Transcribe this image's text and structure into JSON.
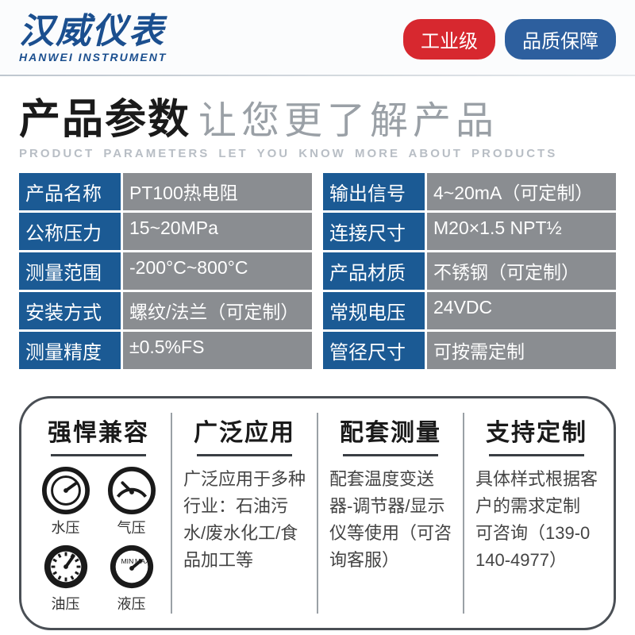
{
  "brand": {
    "cn": "汉威仪表",
    "en": "HANWEI INSTRUMENT"
  },
  "badges": {
    "red": "工业级",
    "blue": "品质保障"
  },
  "title": {
    "bold": "产品参数",
    "light": "让您更了解产品",
    "sub": "PRODUCT PARAMETERS LET YOU KNOW MORE ABOUT PRODUCTS"
  },
  "colors": {
    "label_bg": "#1b5a94",
    "value_bg": "#8a8d91",
    "badge_red": "#d7282f",
    "badge_blue": "#2d5f9e",
    "brand_blue": "#1b4f8f"
  },
  "specs_left": [
    {
      "label": "产品名称",
      "value": "PT100热电阻"
    },
    {
      "label": "公称压力",
      "value": "15~20MPa"
    },
    {
      "label": "测量范围",
      "value": "-200°C~800°C"
    },
    {
      "label": "安装方式",
      "value": "螺纹/法兰（可定制）"
    },
    {
      "label": "测量精度",
      "value": "±0.5%FS"
    }
  ],
  "specs_right": [
    {
      "label": "输出信号",
      "value": "4~20mA（可定制）"
    },
    {
      "label": "连接尺寸",
      "value": "M20×1.5 NPT½"
    },
    {
      "label": "产品材质",
      "value": "不锈钢（可定制）"
    },
    {
      "label": "常规电压",
      "value": "24VDC"
    },
    {
      "label": "管径尺寸",
      "value": "可按需定制"
    }
  ],
  "features": [
    {
      "title": "强悍兼容",
      "gauges": [
        "水压",
        "气压",
        "油压",
        "液压"
      ]
    },
    {
      "title": "广泛应用",
      "text": "广泛应用于多种行业：石油污水/废水化工/食品加工等"
    },
    {
      "title": "配套测量",
      "text": "配套温度变送器-调节器/显示仪等使用（可咨询客服）"
    },
    {
      "title": "支持定制",
      "text": "具体样式根据客户的需求定制 可咨询（139-0140-4977）"
    }
  ]
}
